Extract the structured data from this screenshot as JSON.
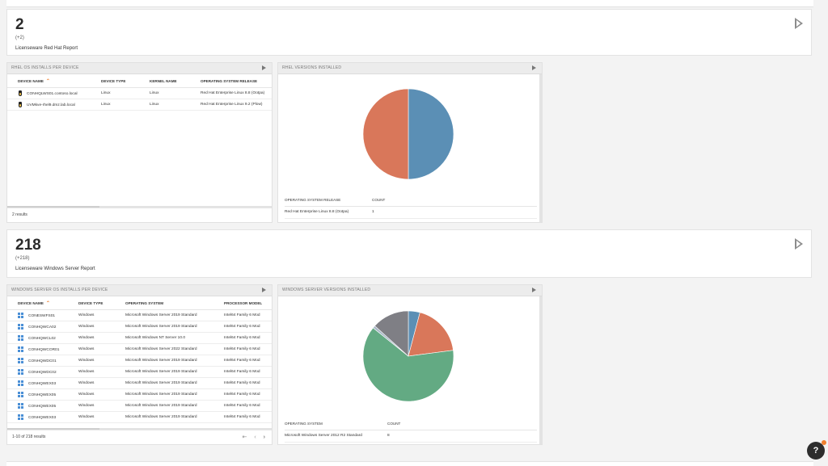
{
  "redhat": {
    "kpi": {
      "value": "2",
      "delta": "(+2)",
      "title": "Licenseware Red Hat Report"
    },
    "installs": {
      "title": "RHEL OS INSTALLS PER DEVICE",
      "columns": [
        "DEVICE NAME",
        "DEVICE TYPE",
        "KERNEL NAME",
        "OPERATING SYSTEM RELEASE"
      ],
      "rows": [
        [
          "CONHQLWS01.contoso.local",
          "Linux",
          "Linux",
          "Red Hat Enterprise Linux 8.8 (Ootpa)"
        ],
        [
          "UVMkve-rhel9.dmz.lab.local",
          "Linux",
          "Linux",
          "Red Hat Enterprise Linux 9.2 (Plow)"
        ]
      ],
      "results": "2 results"
    },
    "versions": {
      "title": "RHEL VERSIONS INSTALLED",
      "col_release": "OPERATING SYSTEM RELEASE",
      "col_count": "COUNT",
      "rows": [
        {
          "release": "Red Hat Enterprise Linux 8.8 (Ootpa)",
          "count": "1"
        }
      ],
      "slices": [
        {
          "value": 1,
          "color": "#5b8fb5"
        },
        {
          "value": 1,
          "color": "#d9775a"
        }
      ]
    }
  },
  "windows": {
    "kpi": {
      "value": "218",
      "delta": "(+218)",
      "title": "Licenseware Windows Server Report"
    },
    "installs": {
      "title": "WINDOWS SERVER OS INSTALLS PER DEVICE",
      "columns": [
        "DEVICE NAME",
        "DEVICE TYPE",
        "OPERATING SYSTEM",
        "PROCESSOR MODEL"
      ],
      "rows": [
        [
          "CONESWFS01",
          "Windows",
          "Microsoft Windows Server 2019 Standard",
          "Intel64 Family 6 Mod"
        ],
        [
          "CONHQWCA02",
          "Windows",
          "Microsoft Windows Server 2019 Standard",
          "Intel64 Family 6 Mod"
        ],
        [
          "CONHQWCL02",
          "Windows",
          "Microsoft Windows NT Server 10.0",
          "Intel64 Family 6 Mod"
        ],
        [
          "CONHQWCOR01",
          "Windows",
          "Microsoft Windows Server 2022 Standard",
          "Intel64 Family 6 Mod"
        ],
        [
          "CONHQWDC01",
          "Windows",
          "Microsoft Windows Server 2019 Standard",
          "Intel64 Family 6 Mod"
        ],
        [
          "CONHQWDC02",
          "Windows",
          "Microsoft Windows Server 2019 Standard",
          "Intel64 Family 6 Mod"
        ],
        [
          "CONHQWEX03",
          "Windows",
          "Microsoft Windows Server 2019 Standard",
          "Intel64 Family 6 Mod"
        ],
        [
          "CONHQWEX05",
          "Windows",
          "Microsoft Windows Server 2019 Standard",
          "Intel64 Family 6 Mod"
        ],
        [
          "CONHQWEX05",
          "Windows",
          "Microsoft Windows Server 2019 Standard",
          "Intel64 Family 6 Mod"
        ],
        [
          "CONHQWEX03",
          "Windows",
          "Microsoft Windows Server 2019 Standard",
          "Intel64 Family 6 Mod"
        ]
      ],
      "results": "1-10 of 218 results"
    },
    "versions": {
      "title": "WINDOWS SERVER VERSIONS INSTALLED",
      "col_os": "OPERATING SYSTEM",
      "col_count": "COUNT",
      "rows": [
        {
          "os": "Microsoft Windows Server 2012 R2 Standard",
          "count": "8"
        }
      ],
      "slices": [
        {
          "value": 9,
          "color": "#5b8fb5"
        },
        {
          "value": 41,
          "color": "#d9775a"
        },
        {
          "value": 137,
          "color": "#63aa83"
        },
        {
          "value": 2,
          "color": "#a7b6c6"
        },
        {
          "value": 29,
          "color": "#7f7f85"
        }
      ]
    }
  },
  "help": {
    "label": "?"
  }
}
